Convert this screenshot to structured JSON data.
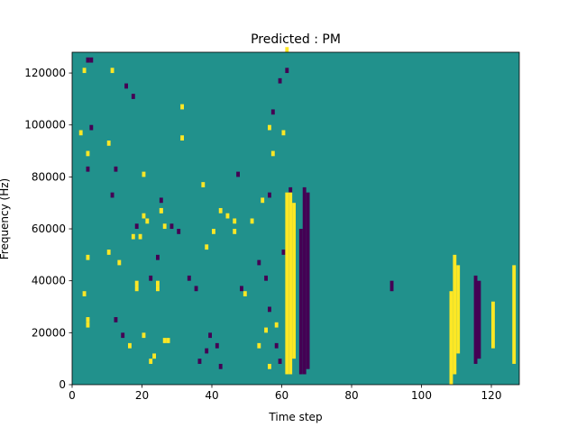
{
  "chart_data": {
    "type": "heatmap",
    "title": "Predicted : PM",
    "xlabel": "Time step",
    "ylabel": "Frequency (Hz)",
    "xlim": [
      0,
      128
    ],
    "ylim": [
      0,
      128000
    ],
    "xticks": [
      0,
      20,
      40,
      60,
      80,
      100,
      120
    ],
    "yticks": [
      0,
      20000,
      40000,
      60000,
      80000,
      100000,
      120000
    ],
    "grid": false,
    "legend": "none",
    "colormap": "viridis",
    "levels": {
      "low": 0,
      "mid": 1,
      "high": 2
    },
    "background_level": 1,
    "colors": {
      "low": "#440154",
      "mid": "#21918c",
      "high": "#fde725"
    },
    "bin_width_x": 1,
    "bin_height_hz": 2000,
    "cells": {
      "high": [
        [
          3,
          120000
        ],
        [
          3,
          34000
        ],
        [
          4,
          88000
        ],
        [
          4,
          48000
        ],
        [
          4,
          24000
        ],
        [
          4,
          22000
        ],
        [
          2,
          96000
        ],
        [
          11,
          120000
        ],
        [
          10,
          92000
        ],
        [
          10,
          50000
        ],
        [
          13,
          46000
        ],
        [
          17,
          56000
        ],
        [
          18,
          36000
        ],
        [
          18,
          38000
        ],
        [
          19,
          56000
        ],
        [
          20,
          64000
        ],
        [
          20,
          80000
        ],
        [
          21,
          62000
        ],
        [
          22,
          8000
        ],
        [
          23,
          10000
        ],
        [
          20,
          18000
        ],
        [
          16,
          14000
        ],
        [
          25,
          66000
        ],
        [
          25,
          66000
        ],
        [
          26,
          60000
        ],
        [
          26,
          16000
        ],
        [
          27,
          16000
        ],
        [
          24,
          36000
        ],
        [
          24,
          38000
        ],
        [
          31,
          106000
        ],
        [
          31,
          94000
        ],
        [
          37,
          76000
        ],
        [
          38,
          52000
        ],
        [
          40,
          58000
        ],
        [
          42,
          66000
        ],
        [
          44,
          64000
        ],
        [
          46,
          58000
        ],
        [
          46,
          62000
        ],
        [
          49,
          34000
        ],
        [
          51,
          62000
        ],
        [
          53,
          14000
        ],
        [
          54,
          70000
        ],
        [
          55,
          20000
        ],
        [
          56,
          98000
        ],
        [
          57,
          88000
        ],
        [
          60,
          96000
        ],
        [
          61,
          128000
        ],
        [
          56,
          6000
        ],
        [
          58,
          22000
        ]
      ],
      "low": [
        [
          4,
          124000
        ],
        [
          5,
          124000
        ],
        [
          5,
          98000
        ],
        [
          4,
          82000
        ],
        [
          11,
          72000
        ],
        [
          12,
          82000
        ],
        [
          15,
          114000
        ],
        [
          17,
          110000
        ],
        [
          12,
          24000
        ],
        [
          14,
          18000
        ],
        [
          18,
          60000
        ],
        [
          22,
          40000
        ],
        [
          24,
          48000
        ],
        [
          25,
          70000
        ],
        [
          28,
          60000
        ],
        [
          30,
          58000
        ],
        [
          33,
          40000
        ],
        [
          35,
          36000
        ],
        [
          36,
          8000
        ],
        [
          38,
          12000
        ],
        [
          39,
          18000
        ],
        [
          41,
          14000
        ],
        [
          42,
          6000
        ],
        [
          47,
          80000
        ],
        [
          48,
          36000
        ],
        [
          53,
          46000
        ],
        [
          55,
          40000
        ],
        [
          56,
          72000
        ],
        [
          56,
          28000
        ],
        [
          60,
          50000
        ],
        [
          62,
          74000
        ],
        [
          58,
          14000
        ],
        [
          59,
          8000
        ],
        [
          57,
          104000
        ],
        [
          59,
          116000
        ],
        [
          61,
          120000
        ]
      ]
    },
    "column_features": [
      {
        "x": 61,
        "level": "high",
        "from": 4000,
        "to": 74000
      },
      {
        "x": 62,
        "level": "high",
        "from": 4000,
        "to": 74000
      },
      {
        "x": 63,
        "level": "high",
        "from": 10000,
        "to": 70000
      },
      {
        "x": 65,
        "level": "low",
        "from": 4000,
        "to": 60000
      },
      {
        "x": 66,
        "level": "low",
        "from": 4000,
        "to": 76000
      },
      {
        "x": 67,
        "level": "low",
        "from": 6000,
        "to": 74000
      },
      {
        "x": 91,
        "level": "low",
        "from": 36000,
        "to": 40000
      },
      {
        "x": 108,
        "level": "high",
        "from": 0,
        "to": 36000
      },
      {
        "x": 109,
        "level": "high",
        "from": 4000,
        "to": 50000
      },
      {
        "x": 110,
        "level": "high",
        "from": 12000,
        "to": 46000
      },
      {
        "x": 115,
        "level": "low",
        "from": 8000,
        "to": 42000
      },
      {
        "x": 116,
        "level": "low",
        "from": 10000,
        "to": 40000
      },
      {
        "x": 120,
        "level": "high",
        "from": 14000,
        "to": 32000
      },
      {
        "x": 126,
        "level": "high",
        "from": 8000,
        "to": 46000
      }
    ]
  }
}
